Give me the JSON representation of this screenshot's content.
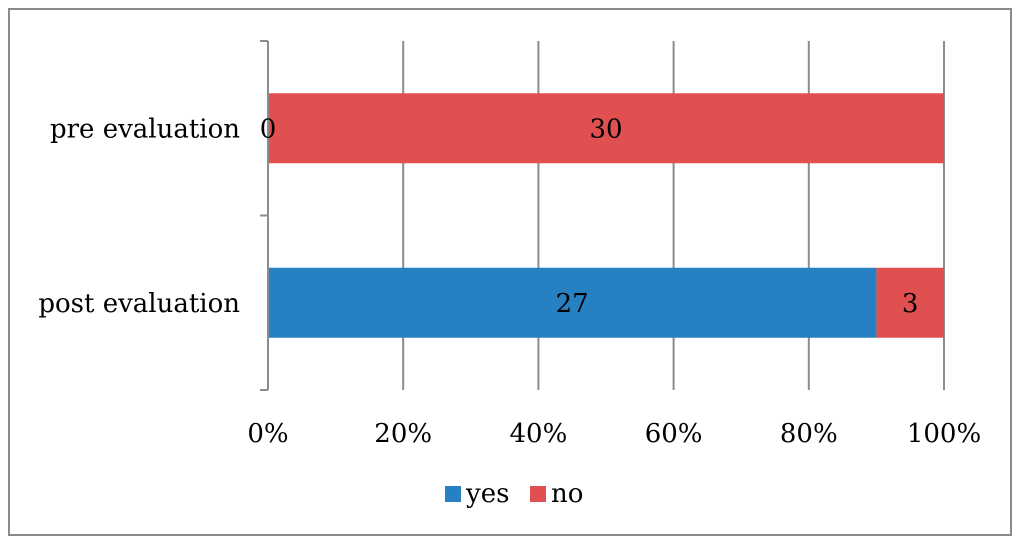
{
  "chart_data": {
    "type": "bar",
    "orientation": "horizontal",
    "stacked": "percent",
    "categories": [
      "pre evaluation",
      "post evaluation"
    ],
    "series": [
      {
        "name": "yes",
        "color": "#2680c2",
        "values": [
          0,
          27
        ]
      },
      {
        "name": "no",
        "color": "#e05050",
        "values": [
          30,
          3
        ]
      }
    ],
    "xticks": [
      "0%",
      "20%",
      "40%",
      "60%",
      "80%",
      "100%"
    ],
    "xlim": [
      0,
      100
    ],
    "grid": true,
    "legend": "bottom"
  }
}
